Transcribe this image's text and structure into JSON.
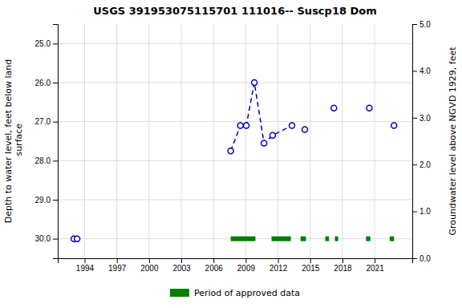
{
  "chart_data": {
    "type": "scatter",
    "title": "USGS 391953075115701 111016-- Suscp18 Dom",
    "ylabel": "Depth to water level, feet below land\n surface",
    "y2label": "Groundwater level above NGVD 1929, feet",
    "xlim": [
      1991.5,
      2024.5
    ],
    "ylim": [
      30.5,
      24.5
    ],
    "y2lim": [
      0.0,
      5.0
    ],
    "xticks": [
      1994,
      1997,
      2000,
      2003,
      2006,
      2009,
      2012,
      2015,
      2018,
      2021
    ],
    "yticks": [
      {
        "value": 25.0,
        "label": "25.0"
      },
      {
        "value": 26.0,
        "label": "26.0"
      },
      {
        "value": 27.0,
        "label": "27.0"
      },
      {
        "value": 28.0,
        "label": "28.0"
      },
      {
        "value": 29.0,
        "label": "29.0"
      },
      {
        "value": 30.0,
        "label": "30.0"
      }
    ],
    "y2ticks": [
      {
        "value": 0.0,
        "label": "0.0"
      },
      {
        "value": 1.0,
        "label": "1.0"
      },
      {
        "value": 2.0,
        "label": "2.0"
      },
      {
        "value": 3.0,
        "label": "3.0"
      },
      {
        "value": 4.0,
        "label": "4.0"
      },
      {
        "value": 5.0,
        "label": "5.0"
      }
    ],
    "grid": true,
    "legend": "bottom",
    "series": [
      {
        "type": "line",
        "color": "#0000bb",
        "line_style": "dashed",
        "x": [
          2007.6,
          2008.5,
          2009.05,
          2009.8,
          2010.7,
          2011.5,
          2013.3
        ],
        "values": [
          27.75,
          27.1,
          27.1,
          26.0,
          27.55,
          27.35,
          27.1
        ]
      },
      {
        "type": "scatter",
        "color": "#0000bb",
        "marker": "circle",
        "x": [
          1993.0,
          1993.3,
          2007.6,
          2008.5,
          2009.05,
          2009.8,
          2010.7,
          2011.5,
          2013.3,
          2014.5,
          2017.2,
          2020.5,
          2022.8
        ],
        "values": [
          30.0,
          30.0,
          27.75,
          27.1,
          27.1,
          26.0,
          27.55,
          27.35,
          27.1,
          27.2,
          26.65,
          26.65,
          27.1
        ]
      },
      {
        "type": "span",
        "name": "Period of approved data",
        "color": "#008000",
        "start": [
          2007.6,
          2011.4,
          2014.1,
          2016.4,
          2017.3,
          2020.2,
          2022.4
        ],
        "end": [
          2009.9,
          2013.2,
          2014.6,
          2016.75,
          2017.6,
          2020.6,
          2022.8
        ],
        "values": [
          30.0,
          30.0,
          30.0,
          30.0,
          30.0,
          30.0,
          30.0
        ]
      }
    ]
  }
}
